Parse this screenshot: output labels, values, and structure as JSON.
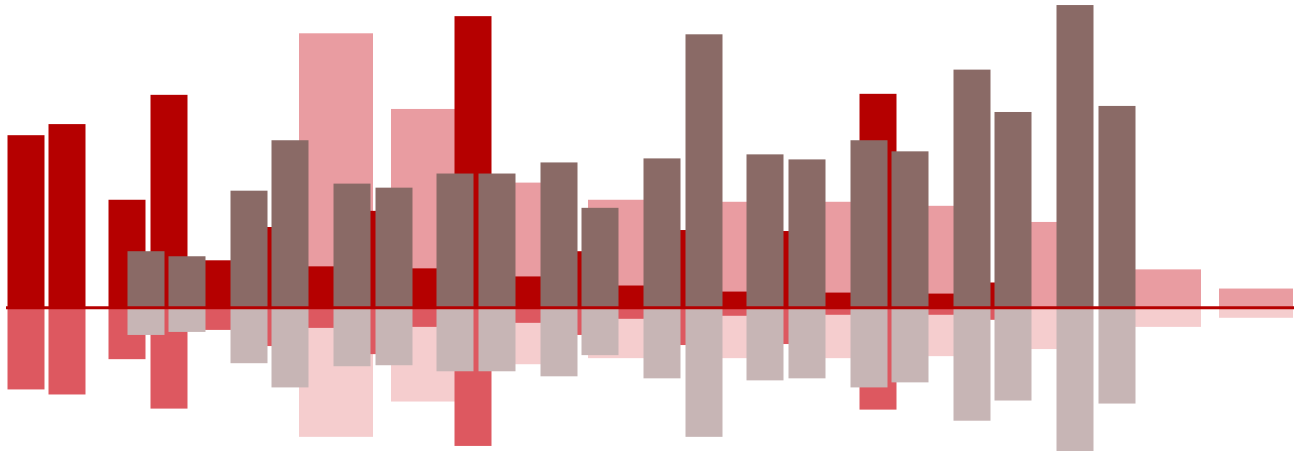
{
  "chart_data": {
    "type": "bar",
    "title": "",
    "xlabel": "",
    "ylabel": "",
    "grid": false,
    "legend": "none",
    "axes_visible": false,
    "mirrored": true,
    "baseline_color": "#b50000",
    "ylim": [
      -145,
      305
    ],
    "series": [
      {
        "layer": "back",
        "color_up": "#e99ca1",
        "color_down": "#f5cdce",
        "points": [
          {
            "x": 336,
            "up": 272,
            "down": 128
          },
          {
            "x": 428,
            "up": 197,
            "down": 93
          },
          {
            "x": 534,
            "up": 124,
            "down": 56
          },
          {
            "x": 625,
            "up": 107,
            "down": 50
          },
          {
            "x": 728,
            "up": 105,
            "down": 50
          },
          {
            "x": 832,
            "up": 105,
            "down": 50
          },
          {
            "x": 935,
            "up": 101,
            "down": 48
          },
          {
            "x": 1039,
            "up": 85,
            "down": 41
          },
          {
            "x": 1164,
            "up": 38,
            "down": 19
          },
          {
            "x": 1256,
            "up": 19,
            "down": 10
          }
        ]
      },
      {
        "layer": "middle",
        "color_up": "#b50000",
        "color_down": "#dd5860",
        "points": [
          {
            "x": 26,
            "up": 171,
            "down": 81
          },
          {
            "x": 67,
            "up": 182,
            "down": 86
          },
          {
            "x": 127,
            "up": 107,
            "down": 51
          },
          {
            "x": 169,
            "up": 211,
            "down": 100
          },
          {
            "x": 220,
            "up": 47,
            "down": 22
          },
          {
            "x": 265,
            "up": 80,
            "down": 38
          },
          {
            "x": 323,
            "up": 41,
            "down": 20
          },
          {
            "x": 370,
            "up": 96,
            "down": 46
          },
          {
            "x": 425,
            "up": 39,
            "down": 19
          },
          {
            "x": 473,
            "up": 289,
            "down": 137
          },
          {
            "x": 528,
            "up": 31,
            "down": 15
          },
          {
            "x": 575,
            "up": 56,
            "down": 27
          },
          {
            "x": 631,
            "up": 22,
            "down": 11
          },
          {
            "x": 680,
            "up": 77,
            "down": 37
          },
          {
            "x": 735,
            "up": 16,
            "down": 8
          },
          {
            "x": 783,
            "up": 76,
            "down": 36
          },
          {
            "x": 838,
            "up": 15,
            "down": 7
          },
          {
            "x": 878,
            "up": 212,
            "down": 101
          },
          {
            "x": 941,
            "up": 14,
            "down": 7
          },
          {
            "x": 988,
            "up": 25,
            "down": 12
          }
        ]
      },
      {
        "layer": "front",
        "color_up": "#8a6a66",
        "color_down": "#c7b5b5",
        "points": [
          {
            "x": 146,
            "up": 56,
            "down": 27
          },
          {
            "x": 187,
            "up": 51,
            "down": 24
          },
          {
            "x": 249,
            "up": 116,
            "down": 55
          },
          {
            "x": 290,
            "up": 166,
            "down": 79
          },
          {
            "x": 352,
            "up": 123,
            "down": 58
          },
          {
            "x": 394,
            "up": 119,
            "down": 57
          },
          {
            "x": 455,
            "up": 133,
            "down": 63
          },
          {
            "x": 497,
            "up": 133,
            "down": 63
          },
          {
            "x": 559,
            "up": 144,
            "down": 68
          },
          {
            "x": 600,
            "up": 99,
            "down": 47
          },
          {
            "x": 662,
            "up": 148,
            "down": 70
          },
          {
            "x": 704,
            "up": 271,
            "down": 128
          },
          {
            "x": 765,
            "up": 152,
            "down": 72
          },
          {
            "x": 807,
            "up": 147,
            "down": 70
          },
          {
            "x": 869,
            "up": 166,
            "down": 79
          },
          {
            "x": 910,
            "up": 155,
            "down": 74
          },
          {
            "x": 972,
            "up": 236,
            "down": 112
          },
          {
            "x": 1013,
            "up": 194,
            "down": 92
          },
          {
            "x": 1075,
            "up": 300,
            "down": 142
          },
          {
            "x": 1117,
            "up": 200,
            "down": 95
          }
        ]
      }
    ]
  }
}
